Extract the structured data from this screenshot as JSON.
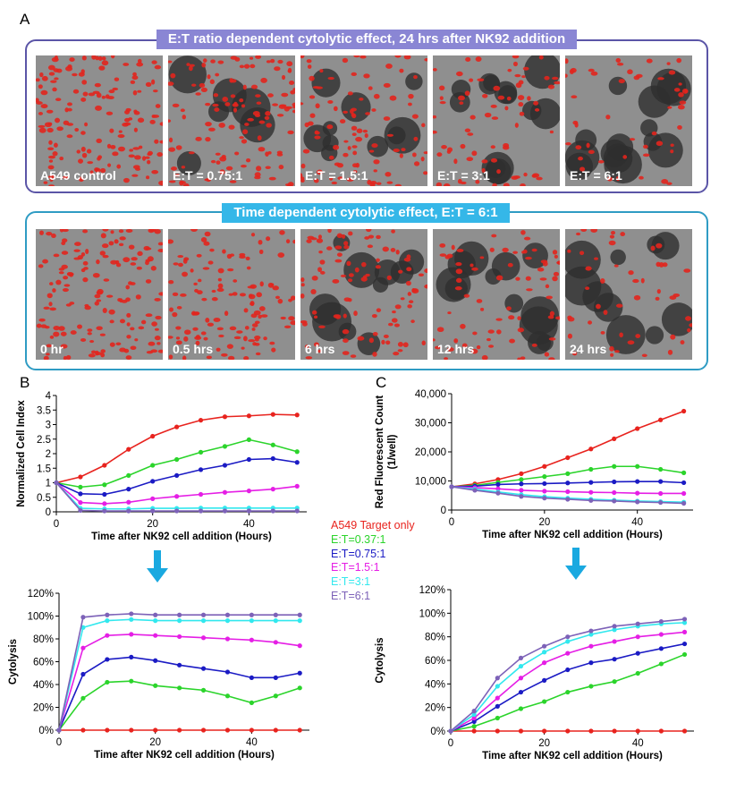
{
  "panels": {
    "a": "A",
    "b": "B",
    "c": "C"
  },
  "panel_a": {
    "title": "E:T ratio dependent cytolytic effect, 24 hrs after NK92 addition",
    "images": [
      "A549 control",
      "E:T = 0.75:1",
      "E:T = 1.5:1",
      "E:T = 3:1",
      "E:T = 6:1"
    ]
  },
  "panel_a2": {
    "title": "Time dependent cytolytic effect, E:T = 6:1",
    "images": [
      "0 hr",
      "0.5 hrs",
      "6 hrs",
      "12 hrs",
      "24 hrs"
    ]
  },
  "legend": [
    {
      "name": "A549 Target only",
      "color": "#e8231e"
    },
    {
      "name": "E:T=0.37:1",
      "color": "#2bd42b"
    },
    {
      "name": "E:T=0.75:1",
      "color": "#1b1bc4"
    },
    {
      "name": "E:T=1.5:1",
      "color": "#e51ee5"
    },
    {
      "name": "E:T=3:1",
      "color": "#32e8ee"
    },
    {
      "name": "E:T=6:1",
      "color": "#7d62b8"
    }
  ],
  "arrow_color": "#1aa9e0",
  "chart_data": [
    {
      "id": "b_top",
      "type": "line",
      "xlabel": "Time after NK92 cell addition (Hours)",
      "ylabel": "Normalized Cell Index",
      "xlim": [
        0,
        52
      ],
      "ylim": [
        0,
        4
      ],
      "xticks": [
        0,
        20,
        40
      ],
      "yticks": [
        0,
        0.5,
        1,
        1.5,
        2,
        2.5,
        3,
        3.5,
        4
      ],
      "ytick_labels": [
        "0",
        "0.5",
        "1",
        "1.5",
        "2",
        "2.5",
        "3",
        "3.5",
        "4"
      ],
      "x": [
        0,
        5,
        10,
        15,
        20,
        25,
        30,
        35,
        40,
        45,
        50
      ],
      "series": [
        {
          "values": [
            1,
            1.2,
            1.6,
            2.15,
            2.6,
            2.92,
            3.15,
            3.27,
            3.3,
            3.35,
            3.33
          ],
          "color": "#e8231e"
        },
        {
          "values": [
            1,
            0.85,
            0.93,
            1.25,
            1.6,
            1.8,
            2.05,
            2.25,
            2.48,
            2.3,
            2.07
          ],
          "color": "#2bd42b"
        },
        {
          "values": [
            1,
            0.62,
            0.6,
            0.78,
            1.05,
            1.25,
            1.45,
            1.6,
            1.8,
            1.83,
            1.7
          ],
          "color": "#1b1bc4"
        },
        {
          "values": [
            1,
            0.32,
            0.28,
            0.33,
            0.45,
            0.53,
            0.6,
            0.67,
            0.72,
            0.78,
            0.88
          ],
          "color": "#e51ee5"
        },
        {
          "values": [
            1,
            0.12,
            0.1,
            0.1,
            0.12,
            0.12,
            0.13,
            0.13,
            0.13,
            0.13,
            0.13
          ],
          "color": "#32e8ee"
        },
        {
          "values": [
            1,
            0.05,
            0.03,
            0.03,
            0.03,
            0.03,
            0.03,
            0.03,
            0.03,
            0.03,
            0.03
          ],
          "color": "#7d62b8"
        }
      ]
    },
    {
      "id": "c_top",
      "type": "line",
      "xlabel": "Time after NK92 cell addition (Hours)",
      "ylabel": "Red Fluorescent Count (1/well)",
      "xlim": [
        0,
        52
      ],
      "ylim": [
        0,
        40000
      ],
      "xticks": [
        0,
        20,
        40
      ],
      "yticks": [
        0,
        10000,
        20000,
        30000,
        40000
      ],
      "ytick_labels": [
        "0",
        "10,000",
        "20,000",
        "30,000",
        "40,000"
      ],
      "x": [
        0,
        5,
        10,
        15,
        20,
        25,
        30,
        35,
        40,
        45,
        50
      ],
      "series": [
        {
          "values": [
            8000,
            9000,
            10500,
            12500,
            15000,
            18000,
            21000,
            24500,
            28000,
            31000,
            34000
          ],
          "color": "#e8231e"
        },
        {
          "values": [
            8000,
            8500,
            9500,
            10500,
            11500,
            12500,
            14000,
            15000,
            15000,
            14000,
            12800
          ],
          "color": "#2bd42b"
        },
        {
          "values": [
            8000,
            8200,
            8800,
            9000,
            9100,
            9300,
            9500,
            9700,
            9800,
            9800,
            9400
          ],
          "color": "#1b1bc4"
        },
        {
          "values": [
            8000,
            7700,
            7300,
            6800,
            6500,
            6300,
            6100,
            6000,
            5800,
            5700,
            5700
          ],
          "color": "#e51ee5"
        },
        {
          "values": [
            8000,
            7200,
            6200,
            5300,
            4600,
            4100,
            3700,
            3400,
            3100,
            2900,
            2700
          ],
          "color": "#32e8ee"
        },
        {
          "values": [
            8000,
            6800,
            5800,
            4700,
            4100,
            3700,
            3300,
            3100,
            2800,
            2600,
            2300
          ],
          "color": "#7d62b8"
        }
      ]
    },
    {
      "id": "b_bottom",
      "type": "line",
      "xlabel": "Time after NK92 cell addition (Hours)",
      "ylabel": "Cytolysis",
      "xlim": [
        0,
        52
      ],
      "ylim": [
        0,
        120
      ],
      "xticks": [
        0,
        20,
        40
      ],
      "yticks": [
        0,
        20,
        40,
        60,
        80,
        100,
        120
      ],
      "ytick_labels": [
        "0%",
        "20%",
        "40%",
        "60%",
        "80%",
        "100%",
        "120%"
      ],
      "x": [
        0,
        5,
        10,
        15,
        20,
        25,
        30,
        35,
        40,
        45,
        50
      ],
      "series": [
        {
          "values": [
            0,
            0,
            0,
            0,
            0,
            0,
            0,
            0,
            0,
            0,
            0
          ],
          "color": "#e8231e"
        },
        {
          "values": [
            0,
            28,
            42,
            43,
            39,
            37,
            35,
            30,
            24,
            30,
            37
          ],
          "color": "#2bd42b"
        },
        {
          "values": [
            0,
            49,
            62,
            64,
            61,
            57,
            54,
            51,
            46,
            46,
            50
          ],
          "color": "#1b1bc4"
        },
        {
          "values": [
            0,
            72,
            83,
            84,
            83,
            82,
            81,
            80,
            79,
            77,
            74
          ],
          "color": "#e51ee5"
        },
        {
          "values": [
            0,
            90,
            96,
            97,
            96,
            96,
            96,
            96,
            96,
            96,
            96
          ],
          "color": "#32e8ee"
        },
        {
          "values": [
            0,
            99,
            101,
            102,
            101,
            101,
            101,
            101,
            101,
            101,
            101
          ],
          "color": "#7d62b8"
        }
      ]
    },
    {
      "id": "c_bottom",
      "type": "line",
      "xlabel": "Time after NK92 cell addition (Hours)",
      "ylabel": "Cytolysis",
      "xlim": [
        0,
        52
      ],
      "ylim": [
        0,
        120
      ],
      "xticks": [
        0,
        20,
        40
      ],
      "yticks": [
        0,
        20,
        40,
        60,
        80,
        100,
        120
      ],
      "ytick_labels": [
        "0%",
        "20%",
        "40%",
        "60%",
        "80%",
        "100%",
        "120%"
      ],
      "x": [
        0,
        5,
        10,
        15,
        20,
        25,
        30,
        35,
        40,
        45,
        50
      ],
      "series": [
        {
          "values": [
            0,
            0,
            0,
            0,
            0,
            0,
            0,
            0,
            0,
            0,
            0
          ],
          "color": "#e8231e"
        },
        {
          "values": [
            0,
            4,
            11,
            19,
            25,
            33,
            38,
            42,
            49,
            57,
            65
          ],
          "color": "#2bd42b"
        },
        {
          "values": [
            0,
            8,
            21,
            33,
            43,
            52,
            58,
            61,
            66,
            70,
            74
          ],
          "color": "#1b1bc4"
        },
        {
          "values": [
            0,
            11,
            28,
            45,
            58,
            66,
            72,
            76,
            80,
            82,
            84
          ],
          "color": "#e51ee5"
        },
        {
          "values": [
            0,
            14,
            38,
            55,
            67,
            76,
            82,
            86,
            89,
            91,
            92
          ],
          "color": "#32e8ee"
        },
        {
          "values": [
            0,
            17,
            45,
            62,
            72,
            80,
            85,
            89,
            91,
            93,
            95
          ],
          "color": "#7d62b8"
        }
      ]
    }
  ]
}
